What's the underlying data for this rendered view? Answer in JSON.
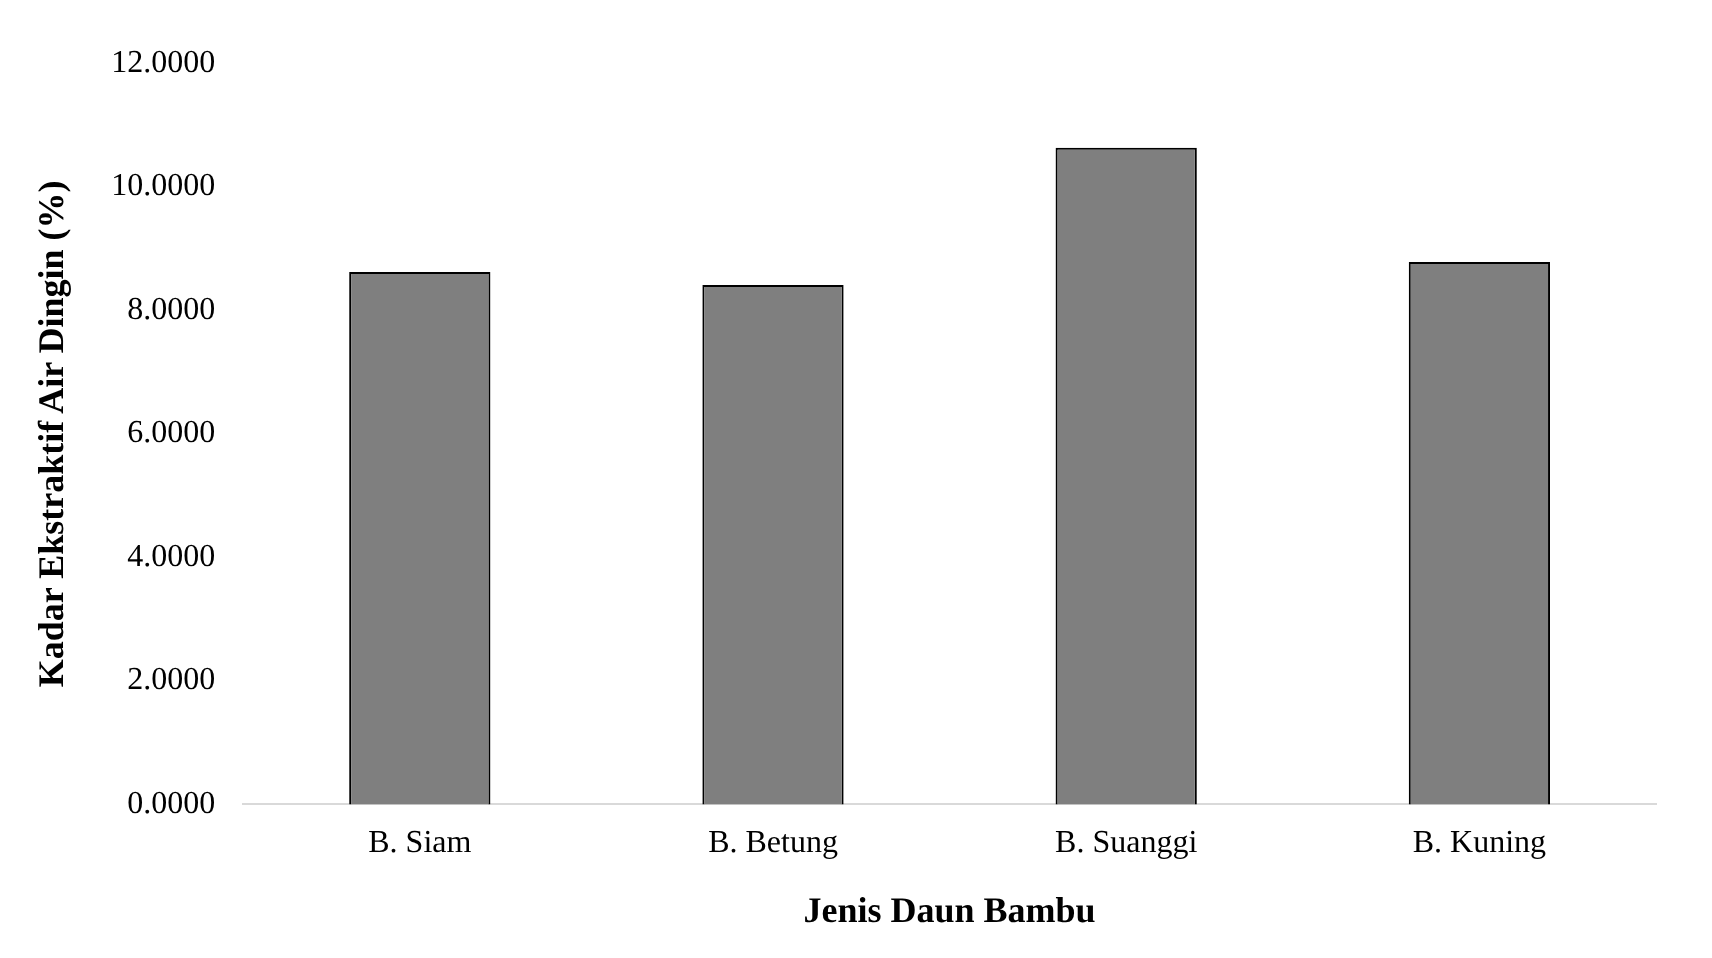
{
  "chart_data": {
    "type": "bar",
    "xlabel": "Jenis Daun Bambu",
    "ylabel": "Kadar Ekstraktif Air Dingin (%)",
    "categories": [
      "B. Siam",
      "B. Betung",
      "B. Suanggi",
      "B. Kuning"
    ],
    "values": [
      8.62,
      8.41,
      10.63,
      8.78
    ],
    "color": "#7f7f7f",
    "ylim": [
      0,
      12
    ],
    "yticks": [
      {
        "value": 0,
        "label": "0.0000"
      },
      {
        "value": 2,
        "label": "2.0000"
      },
      {
        "value": 4,
        "label": "4.0000"
      },
      {
        "value": 6,
        "label": "6.0000"
      },
      {
        "value": 8,
        "label": "8.0000"
      },
      {
        "value": 10,
        "label": "10.0000"
      },
      {
        "value": 12,
        "label": "12.0000"
      }
    ],
    "grid": false,
    "legend": false
  }
}
